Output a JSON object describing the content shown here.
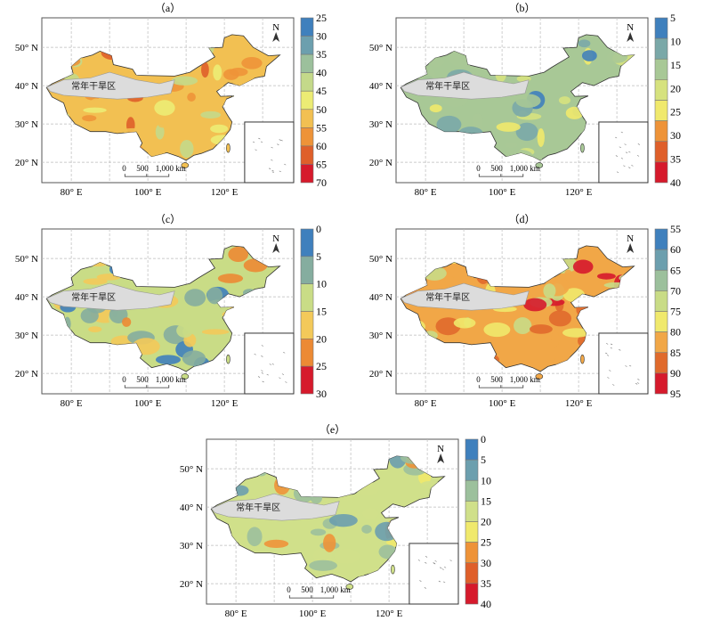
{
  "arid_label": "常年干旱区",
  "north_label": "N",
  "scale_labels": [
    "0",
    "500",
    "1,000 km"
  ],
  "lat_labels": [
    "50° N",
    "40° N",
    "30° N",
    "20° N"
  ],
  "lon_labels": [
    "80° E",
    "100° E",
    "120° E"
  ],
  "panels": [
    {
      "title": "（a）",
      "ticks": [
        "25",
        "30",
        "35",
        "40",
        "45",
        "50",
        "55",
        "60",
        "65",
        "70"
      ],
      "colors": [
        "#3f80bd",
        "#6c9fae",
        "#9cc09c",
        "#c4d98a",
        "#ecec74",
        "#f2c052",
        "#ee9338",
        "#df5f2a",
        "#d61a2c"
      ],
      "base": 5
    },
    {
      "title": "（b）",
      "ticks": [
        "5",
        "10",
        "15",
        "20",
        "25",
        "30",
        "35",
        "40"
      ],
      "colors": [
        "#3f80bd",
        "#7aa8a8",
        "#a8c896",
        "#d6e27e",
        "#f0e96c",
        "#ee9338",
        "#df5f2a",
        "#d61a2c"
      ],
      "base": 2
    },
    {
      "title": "（c）",
      "ticks": [
        "0",
        "5",
        "10",
        "15",
        "20",
        "25",
        "30"
      ],
      "colors": [
        "#3f80bd",
        "#85ad9f",
        "#c9dc86",
        "#f3c95a",
        "#ec8a34",
        "#d61a2c"
      ],
      "base": 2
    },
    {
      "title": "（d）",
      "ticks": [
        "55",
        "60",
        "65",
        "70",
        "75",
        "80",
        "85",
        "90",
        "95"
      ],
      "colors": [
        "#3f80bd",
        "#6c9fae",
        "#9cc09c",
        "#c9dc86",
        "#f0e96c",
        "#f1a747",
        "#e06a2c",
        "#d61a2c"
      ],
      "base": 5
    },
    {
      "title": "（e）",
      "ticks": [
        "0",
        "5",
        "10",
        "15",
        "20",
        "25",
        "30",
        "35",
        "40"
      ],
      "colors": [
        "#3f80bd",
        "#6c9fae",
        "#9cc09c",
        "#d0e08a",
        "#f0e96c",
        "#ee9338",
        "#df5f2a",
        "#d61a2c"
      ],
      "base": 3
    }
  ]
}
